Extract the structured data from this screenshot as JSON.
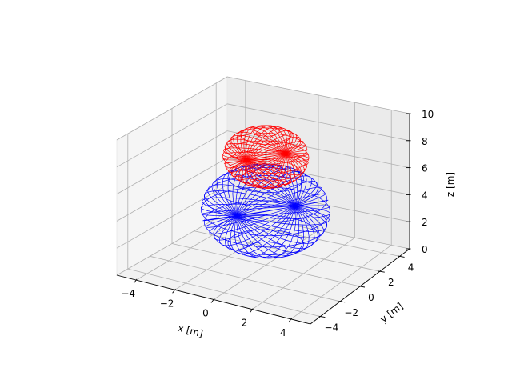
{
  "chart_data": {
    "type": "wireframe-3d",
    "title": "",
    "xlabel": "x [m]",
    "ylabel": "y [m]",
    "zlabel": "z [m]",
    "xlim": [
      -5,
      5
    ],
    "ylim": [
      -5,
      5
    ],
    "zlim": [
      0,
      10
    ],
    "xticks": [
      -4,
      -2,
      0,
      2,
      4
    ],
    "yticks": [
      -4,
      -2,
      0,
      2,
      4
    ],
    "zticks": [
      0,
      2,
      4,
      6,
      8,
      10
    ],
    "grid": true,
    "view": {
      "elev_deg": 30,
      "azim_deg": -60
    },
    "series": [
      {
        "shape": "sphere",
        "center": [
          0,
          0,
          4
        ],
        "radius": 3,
        "color": "#0000ff",
        "meridians": 20,
        "parallels": 10
      },
      {
        "shape": "sphere",
        "center": [
          0,
          0,
          8
        ],
        "radius": 2,
        "color": "#ff0000",
        "meridians": 20,
        "parallels": 10
      }
    ],
    "segments": [
      {
        "from": [
          0,
          0,
          7.5
        ],
        "to": [
          0,
          0,
          8.5
        ],
        "color": "#000000"
      }
    ]
  }
}
